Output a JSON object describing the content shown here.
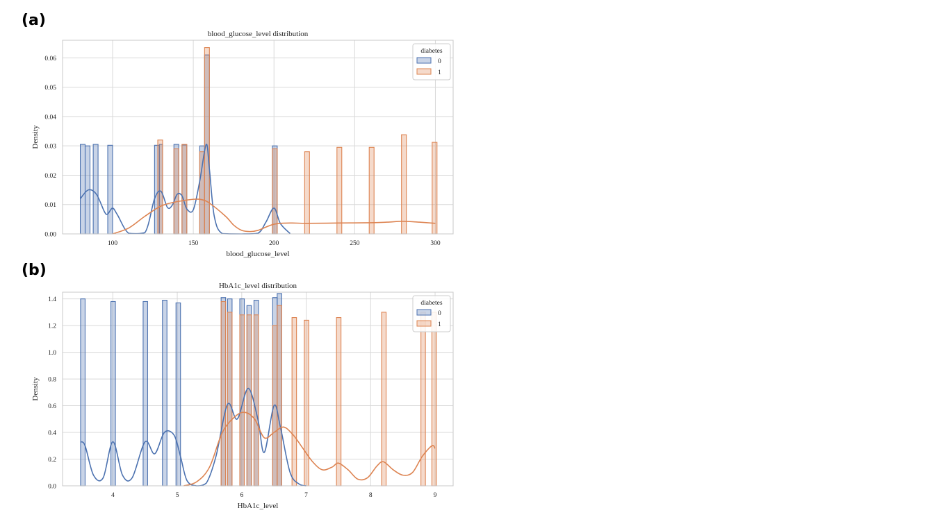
{
  "panel_labels": [
    "(a)",
    "(b)"
  ],
  "colors": {
    "class0": "#4c72b0",
    "class1": "#dd8452",
    "grid": "#d9d9d9",
    "frame": "#c8c8c8"
  },
  "chart_data": [
    {
      "type": "histogram-kde",
      "title": "blood_glucose_level distribution",
      "xlabel": "blood_glucose_level",
      "ylabel": "Density",
      "xlim": [
        69,
        311
      ],
      "ylim": [
        0,
        0.066
      ],
      "xticks": [
        100,
        150,
        200,
        250,
        300
      ],
      "xtick_labels": [
        "100",
        "150",
        "200",
        "250",
        "300"
      ],
      "yticks": [
        0,
        0.01,
        0.02,
        0.03,
        0.04,
        0.05,
        0.06
      ],
      "ytick_labels": [
        "0.00",
        "0.01",
        "0.02",
        "0.03",
        "0.04",
        "0.05",
        "0.06"
      ],
      "grid": true,
      "legend": {
        "title": "diabetes",
        "placement": "top-right",
        "entries": [
          "0",
          "1"
        ]
      },
      "series": [
        {
          "name": "0",
          "bars": [
            {
              "x0": 80,
              "x1": 83,
              "y": 0.0305
            },
            {
              "x0": 83,
              "x1": 86,
              "y": 0.03
            },
            {
              "x0": 88,
              "x1": 91,
              "y": 0.0305
            },
            {
              "x0": 97,
              "x1": 100,
              "y": 0.0302
            },
            {
              "x0": 126,
              "x1": 129,
              "y": 0.0302
            },
            {
              "x0": 129,
              "x1": 131,
              "y": 0.0305
            },
            {
              "x0": 138,
              "x1": 141,
              "y": 0.0305
            },
            {
              "x0": 143,
              "x1": 146,
              "y": 0.0303
            },
            {
              "x0": 154,
              "x1": 157,
              "y": 0.03
            },
            {
              "x0": 157,
              "x1": 160,
              "y": 0.061
            },
            {
              "x0": 199,
              "x1": 202,
              "y": 0.03
            }
          ],
          "kde": {
            "x": [
              80,
              85,
              90,
              95,
              97,
              100,
              103,
              110,
              120,
              126,
              130,
              134,
              137,
              140,
              143,
              146,
              150,
              154,
              158,
              160,
              163,
              168,
              180,
              190,
              195,
              200,
              204,
              210
            ],
            "y": [
              0.012,
              0.015,
              0.0135,
              0.0075,
              0.0068,
              0.0088,
              0.0065,
              0.0002,
              0.0004,
              0.012,
              0.0145,
              0.009,
              0.0098,
              0.0135,
              0.013,
              0.0085,
              0.0082,
              0.018,
              0.0305,
              0.022,
              0.006,
              0.0001,
              0.0,
              0.0002,
              0.004,
              0.0088,
              0.0035,
              0.0001
            ]
          }
        },
        {
          "name": "1",
          "bars": [
            {
              "x0": 128,
              "x1": 131,
              "y": 0.032
            },
            {
              "x0": 138,
              "x1": 141,
              "y": 0.029
            },
            {
              "x0": 143,
              "x1": 146,
              "y": 0.0305
            },
            {
              "x0": 154,
              "x1": 157,
              "y": 0.028
            },
            {
              "x0": 157,
              "x1": 160,
              "y": 0.0635
            },
            {
              "x0": 199,
              "x1": 202,
              "y": 0.029
            },
            {
              "x0": 219,
              "x1": 222,
              "y": 0.028
            },
            {
              "x0": 239,
              "x1": 242,
              "y": 0.0295
            },
            {
              "x0": 259,
              "x1": 262,
              "y": 0.0295
            },
            {
              "x0": 279,
              "x1": 282,
              "y": 0.0338
            },
            {
              "x0": 298,
              "x1": 301,
              "y": 0.0312
            }
          ],
          "kde": {
            "x": [
              100,
              110,
              120,
              130,
              140,
              150,
              155,
              160,
              170,
              175,
              180,
              185,
              190,
              200,
              210,
              220,
              240,
              260,
              270,
              280,
              290,
              300
            ],
            "y": [
              0.0,
              0.002,
              0.006,
              0.0095,
              0.011,
              0.0118,
              0.0117,
              0.0105,
              0.006,
              0.003,
              0.0012,
              0.0008,
              0.0012,
              0.0033,
              0.0037,
              0.0036,
              0.0037,
              0.0038,
              0.004,
              0.0043,
              0.004,
              0.0036
            ]
          }
        }
      ]
    },
    {
      "type": "histogram-kde",
      "title": "HbA1c_level distribution",
      "xlabel": "HbA1c_level",
      "ylabel": "Density",
      "xlim": [
        3.22,
        9.28
      ],
      "ylim": [
        0,
        1.45
      ],
      "xticks": [
        4,
        5,
        6,
        7,
        8,
        9
      ],
      "xtick_labels": [
        "4",
        "5",
        "6",
        "7",
        "8",
        "9"
      ],
      "yticks": [
        0,
        0.2,
        0.4,
        0.6,
        0.8,
        1.0,
        1.2,
        1.4
      ],
      "ytick_labels": [
        "0.0",
        "0.2",
        "0.4",
        "0.6",
        "0.8",
        "1.0",
        "1.2",
        "1.4"
      ],
      "grid": true,
      "legend": {
        "title": "diabetes",
        "placement": "top-right",
        "entries": [
          "0",
          "1"
        ]
      },
      "series": [
        {
          "name": "0",
          "bars": [
            {
              "x0": 3.5,
              "x1": 3.57,
              "y": 1.4
            },
            {
              "x0": 3.97,
              "x1": 4.04,
              "y": 1.38
            },
            {
              "x0": 4.47,
              "x1": 4.54,
              "y": 1.38
            },
            {
              "x0": 4.77,
              "x1": 4.84,
              "y": 1.39
            },
            {
              "x0": 4.98,
              "x1": 5.05,
              "y": 1.37
            },
            {
              "x0": 5.68,
              "x1": 5.75,
              "y": 1.41
            },
            {
              "x0": 5.78,
              "x1": 5.85,
              "y": 1.4
            },
            {
              "x0": 5.97,
              "x1": 6.04,
              "y": 1.4
            },
            {
              "x0": 6.08,
              "x1": 6.15,
              "y": 1.35
            },
            {
              "x0": 6.19,
              "x1": 6.26,
              "y": 1.39
            },
            {
              "x0": 6.48,
              "x1": 6.55,
              "y": 1.41
            },
            {
              "x0": 6.55,
              "x1": 6.62,
              "y": 1.44
            }
          ],
          "kde": {
            "x": [
              3.5,
              3.57,
              3.7,
              3.85,
              4.0,
              4.15,
              4.3,
              4.5,
              4.65,
              4.8,
              4.95,
              5.05,
              5.15,
              5.3,
              5.45,
              5.6,
              5.78,
              5.93,
              6.1,
              6.25,
              6.35,
              6.5,
              6.6,
              6.75,
              6.9,
              7.0
            ],
            "y": [
              0.33,
              0.3,
              0.08,
              0.06,
              0.33,
              0.08,
              0.06,
              0.33,
              0.24,
              0.4,
              0.38,
              0.22,
              0.04,
              0.0,
              0.02,
              0.22,
              0.61,
              0.5,
              0.73,
              0.5,
              0.25,
              0.6,
              0.44,
              0.1,
              0.01,
              0.0
            ]
          }
        },
        {
          "name": "1",
          "bars": [
            {
              "x0": 5.68,
              "x1": 5.75,
              "y": 1.38
            },
            {
              "x0": 5.78,
              "x1": 5.85,
              "y": 1.3
            },
            {
              "x0": 5.97,
              "x1": 6.04,
              "y": 1.28
            },
            {
              "x0": 6.08,
              "x1": 6.15,
              "y": 1.28
            },
            {
              "x0": 6.19,
              "x1": 6.26,
              "y": 1.28
            },
            {
              "x0": 6.48,
              "x1": 6.55,
              "y": 1.2
            },
            {
              "x0": 6.55,
              "x1": 6.62,
              "y": 1.35
            },
            {
              "x0": 6.78,
              "x1": 6.85,
              "y": 1.26
            },
            {
              "x0": 6.97,
              "x1": 7.04,
              "y": 1.24
            },
            {
              "x0": 7.47,
              "x1": 7.54,
              "y": 1.26
            },
            {
              "x0": 8.17,
              "x1": 8.24,
              "y": 1.3
            },
            {
              "x0": 8.78,
              "x1": 8.85,
              "y": 1.3
            },
            {
              "x0": 8.95,
              "x1": 9.02,
              "y": 1.3
            }
          ],
          "kde": {
            "x": [
              5.1,
              5.3,
              5.5,
              5.7,
              5.9,
              6.05,
              6.2,
              6.35,
              6.5,
              6.65,
              6.8,
              6.95,
              7.1,
              7.25,
              7.4,
              7.5,
              7.65,
              7.8,
              7.95,
              8.1,
              8.2,
              8.35,
              8.5,
              8.65,
              8.8,
              8.95,
              9.0
            ],
            "y": [
              0.0,
              0.03,
              0.14,
              0.4,
              0.52,
              0.55,
              0.5,
              0.36,
              0.4,
              0.44,
              0.38,
              0.28,
              0.18,
              0.12,
              0.14,
              0.17,
              0.12,
              0.05,
              0.06,
              0.15,
              0.18,
              0.12,
              0.08,
              0.1,
              0.22,
              0.3,
              0.28
            ]
          }
        }
      ]
    }
  ]
}
